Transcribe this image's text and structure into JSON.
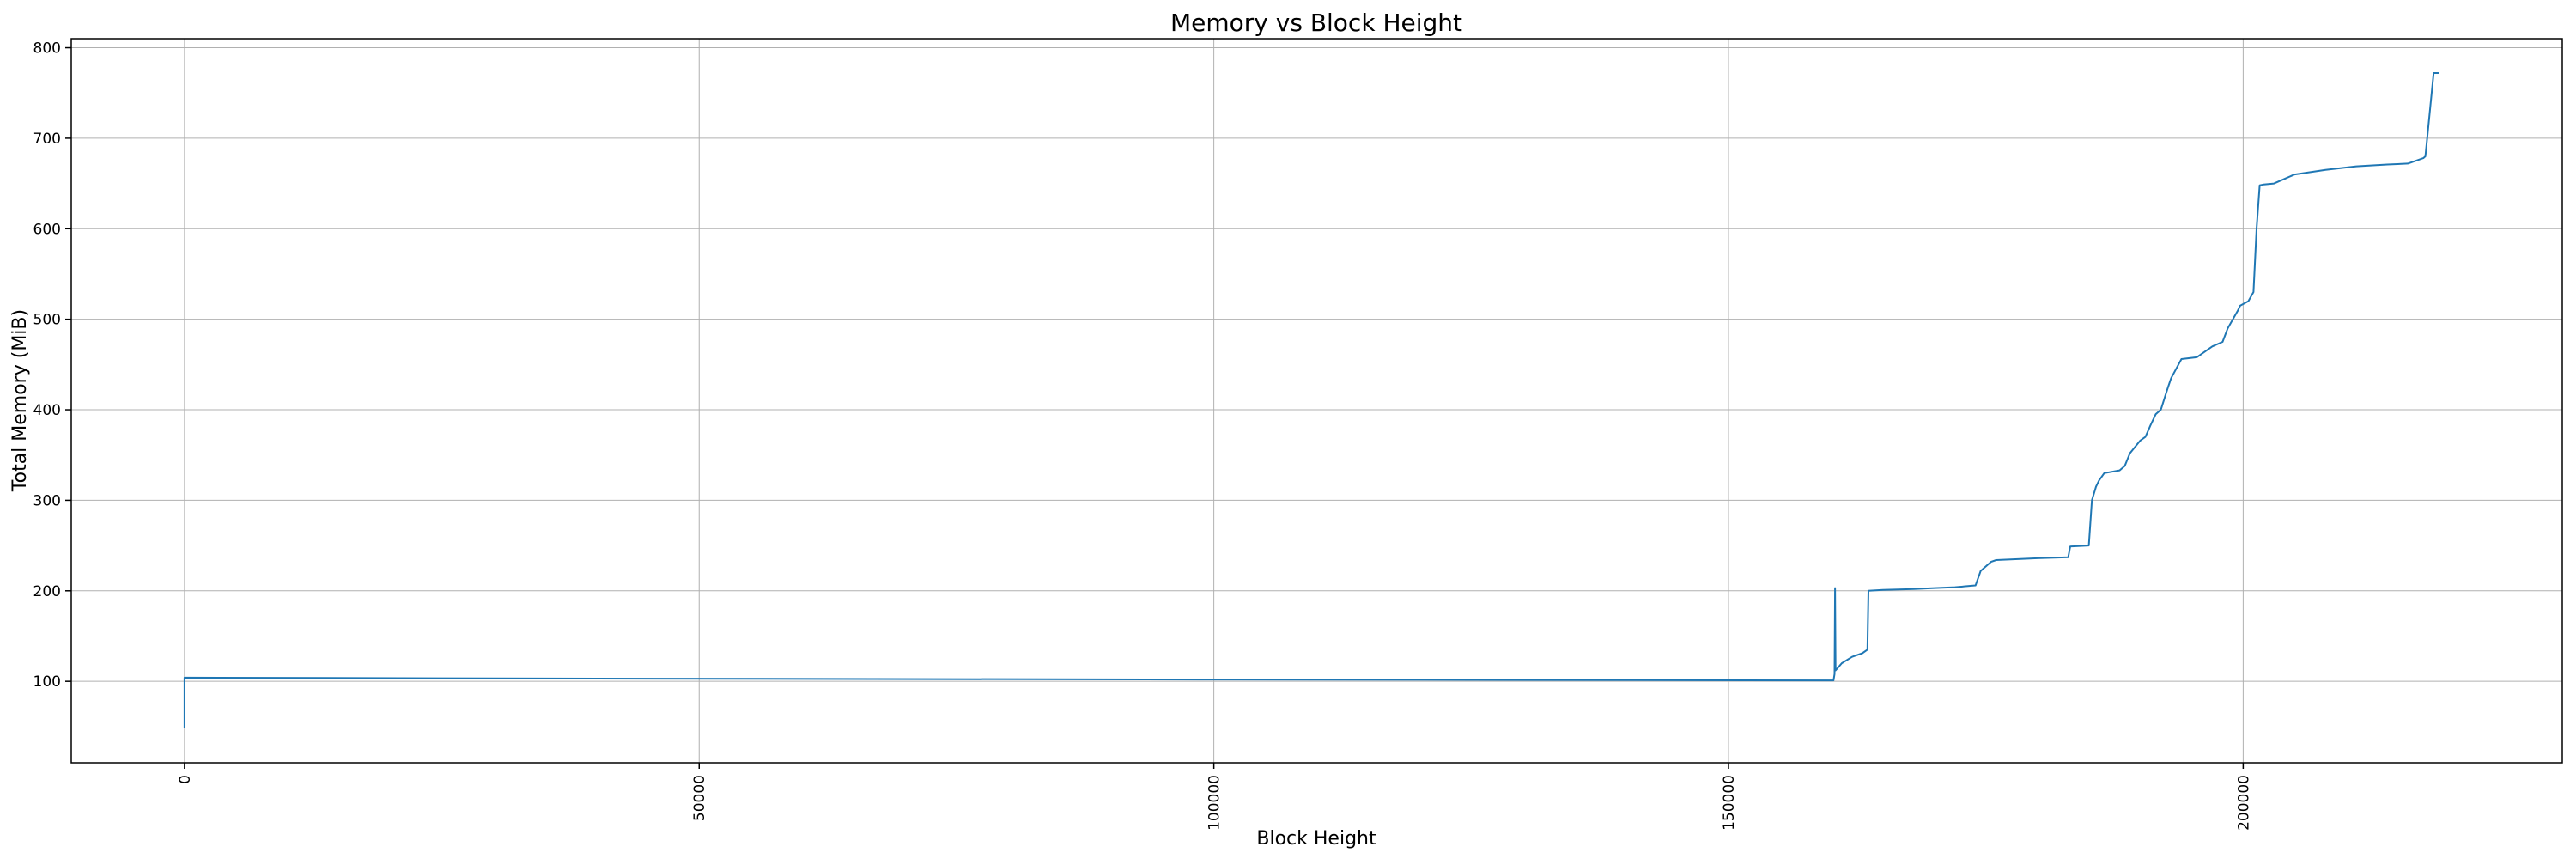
{
  "chart_data": {
    "type": "line",
    "title": "Memory vs Block Height",
    "xlabel": "Block Height",
    "ylabel": "Total Memory (MiB)",
    "xlim": [
      -11000,
      231000
    ],
    "ylim": [
      10,
      810
    ],
    "xticks": [
      0,
      50000,
      100000,
      150000,
      200000
    ],
    "xtick_labels": [
      "0",
      "50000",
      "100000",
      "150000",
      "200000"
    ],
    "yticks": [
      100,
      200,
      300,
      400,
      500,
      600,
      700,
      800
    ],
    "ytick_labels": [
      "100",
      "200",
      "300",
      "400",
      "500",
      "600",
      "700",
      "800"
    ],
    "grid": true,
    "color": "#1f77b4",
    "series": [
      {
        "x": [
          0,
          0,
          40000,
          100000,
          159800,
          160200,
          160300,
          160350,
          160400,
          161000,
          162000,
          163000,
          163500,
          163600,
          165000,
          168000,
          170000,
          172000,
          174000,
          174500,
          175500,
          176000,
          180000,
          183000,
          183200,
          185000,
          185300,
          185700,
          186000,
          186500,
          188000,
          188500,
          189000,
          190000,
          190500,
          191000,
          191500,
          192000,
          192500,
          192700,
          193000,
          194000,
          195500,
          196000,
          197000,
          198000,
          198500,
          199500,
          199700,
          200500,
          201000,
          201300,
          201600,
          202000,
          203000,
          204000,
          205000,
          208000,
          211000,
          214000,
          216000,
          217000,
          217500,
          217700,
          218500,
          219000
        ],
        "y": [
          48,
          104,
          103,
          102,
          101,
          101,
          108,
          203,
          112,
          120,
          127,
          131,
          135,
          200,
          201,
          202,
          203,
          204,
          206,
          222,
          232,
          234,
          236,
          237,
          249,
          250,
          300,
          315,
          322,
          330,
          333,
          338,
          352,
          366,
          370,
          383,
          395,
          400,
          418,
          425,
          435,
          456,
          458,
          462,
          470,
          475,
          490,
          510,
          515,
          520,
          530,
          600,
          648,
          649,
          650,
          655,
          660,
          665,
          669,
          671,
          672,
          676,
          678,
          680,
          772,
          772
        ]
      }
    ]
  }
}
